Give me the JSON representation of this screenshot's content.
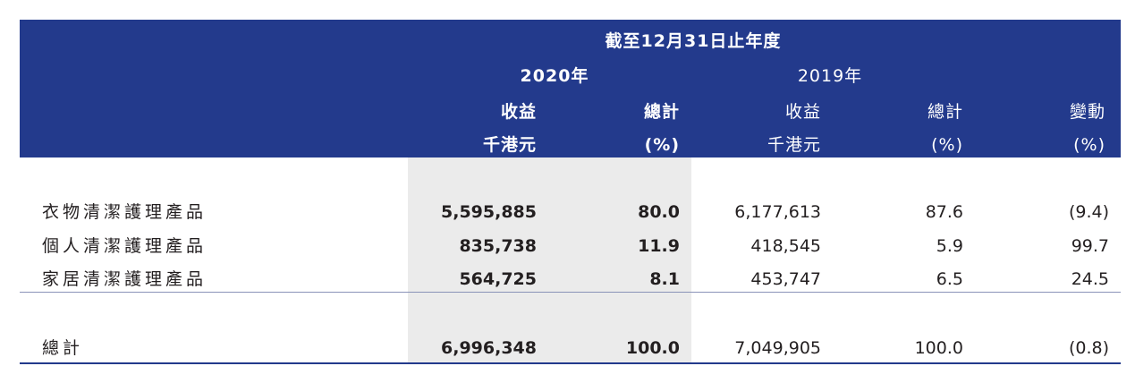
{
  "header": {
    "period": "截至12月31日止年度",
    "year_2020": "2020年",
    "year_2019": "2019年",
    "col_revenue_2020": "收益",
    "col_total_2020": "總計",
    "col_revenue_2019": "收益",
    "col_total_2019": "總計",
    "col_change": "變動",
    "unit_revenue_2020": "千港元",
    "unit_total_2020": "(%)",
    "unit_revenue_2019": "千港元",
    "unit_total_2019": "(%)",
    "unit_change": "(%)"
  },
  "rows": [
    {
      "label": "衣物清潔護理產品",
      "rev2020": "5,595,885",
      "pct2020": "80.0",
      "rev2019": "6,177,613",
      "pct2019": "87.6",
      "change": "(9.4)"
    },
    {
      "label": "個人清潔護理產品",
      "rev2020": "835,738",
      "pct2020": "11.9",
      "rev2019": "418,545",
      "pct2019": "5.9",
      "change": "99.7"
    },
    {
      "label": "家居清潔護理產品",
      "rev2020": "564,725",
      "pct2020": "8.1",
      "rev2019": "453,747",
      "pct2019": "6.5",
      "change": "24.5"
    }
  ],
  "total": {
    "label": "總計",
    "rev2020": "6,996,348",
    "pct2020": "100.0",
    "rev2019": "7,049,905",
    "pct2019": "100.0",
    "change": "(0.8)"
  },
  "colors": {
    "header_bg": "#233a8c",
    "highlight_bg": "#ebebeb"
  }
}
